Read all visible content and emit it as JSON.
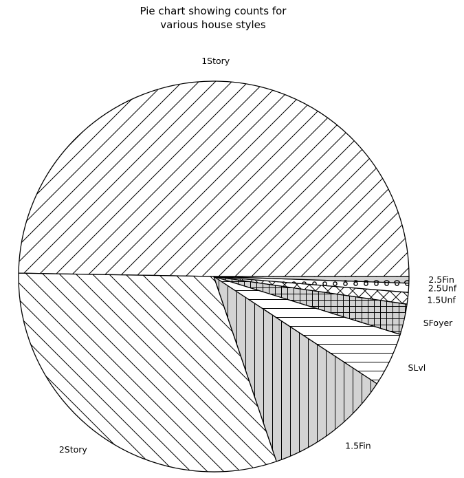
{
  "chart_data": {
    "type": "pie",
    "title_lines": [
      "Pie chart showing counts for",
      "various house styles"
    ],
    "start_angle_deg": 0,
    "direction": "counterclockwise",
    "slices": [
      {
        "label": "1Story",
        "value": 726,
        "hatch": "forward-diagonal",
        "fill": "#ffffff"
      },
      {
        "label": "2Story",
        "value": 445,
        "hatch": "back-diagonal",
        "fill": "#ffffff"
      },
      {
        "label": "1.5Fin",
        "value": 154,
        "hatch": "vertical",
        "fill": "#d3d3d3"
      },
      {
        "label": "SLvl",
        "value": 65,
        "hatch": "horizontal",
        "fill": "#ffffff"
      },
      {
        "label": "SFoyer",
        "value": 37,
        "hatch": "grid",
        "fill": "#d3d3d3"
      },
      {
        "label": "1.5Unf",
        "value": 14,
        "hatch": "crosshatch-x",
        "fill": "#ffffff"
      },
      {
        "label": "2.5Unf",
        "value": 11,
        "hatch": "dots",
        "fill": "#ffffff"
      },
      {
        "label": "2.5Fin",
        "value": 8,
        "hatch": "circles",
        "fill": "#d3d3d3"
      }
    ]
  }
}
